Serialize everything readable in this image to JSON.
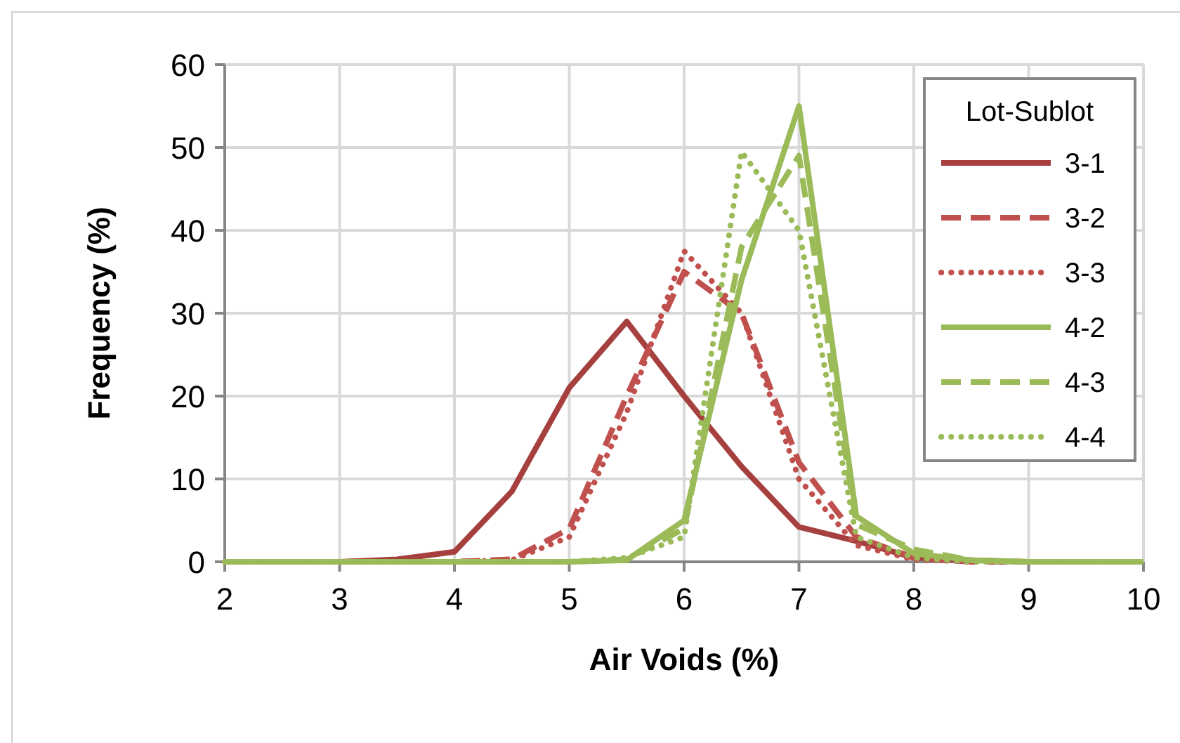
{
  "chart_data": {
    "type": "line",
    "xlabel": "Air Voids (%)",
    "ylabel": "Frequency (%)",
    "legend_title": "Lot-Sublot",
    "legend": "top right",
    "grid": true,
    "x": [
      2,
      2.5,
      3,
      3.5,
      4,
      4.5,
      5,
      5.5,
      6,
      6.5,
      7,
      7.5,
      8,
      8.5,
      9,
      9.5,
      10
    ],
    "xlim": [
      2,
      10
    ],
    "xticks": [
      2,
      3,
      4,
      5,
      6,
      7,
      8,
      9,
      10
    ],
    "ylim": [
      0,
      60
    ],
    "yticks": [
      0,
      10,
      20,
      30,
      40,
      50,
      60
    ],
    "series": [
      {
        "name": "3-1",
        "color": "#a5403e",
        "line_style": "solid",
        "values": [
          0,
          0,
          0,
          0.3,
          1.2,
          8.5,
          21,
          29,
          20,
          11.5,
          4.2,
          2.5,
          0.5,
          0.2,
          0,
          0,
          0
        ]
      },
      {
        "name": "3-2",
        "color": "#c0504d",
        "line_style": "dashed",
        "values": [
          0,
          0,
          0,
          0,
          0,
          0.3,
          4,
          20,
          35,
          30,
          12,
          3,
          0.5,
          0,
          0,
          0,
          0
        ]
      },
      {
        "name": "3-3",
        "color": "#c0504d",
        "line_style": "dotted",
        "values": [
          0,
          0,
          0,
          0,
          0,
          0.2,
          3,
          18,
          37.5,
          30,
          10,
          2,
          0.3,
          0,
          0,
          0,
          0
        ]
      },
      {
        "name": "4-2",
        "color": "#9bbb59",
        "line_style": "solid",
        "values": [
          0,
          0,
          0,
          0,
          0,
          0,
          0,
          0.2,
          5,
          34,
          55,
          5.5,
          1,
          0.2,
          0,
          0,
          0
        ]
      },
      {
        "name": "4-3",
        "color": "#9bbb59",
        "line_style": "dashed",
        "values": [
          0,
          0,
          0,
          0,
          0,
          0,
          0,
          0.3,
          4,
          38,
          49,
          4.5,
          1.5,
          0.2,
          0,
          0,
          0
        ]
      },
      {
        "name": "4-4",
        "color": "#9bbb59",
        "line_style": "dotted",
        "values": [
          0,
          0,
          0,
          0,
          0,
          0,
          0,
          0.5,
          3,
          49.5,
          40,
          3,
          0.5,
          0,
          0,
          0,
          0
        ]
      }
    ]
  }
}
